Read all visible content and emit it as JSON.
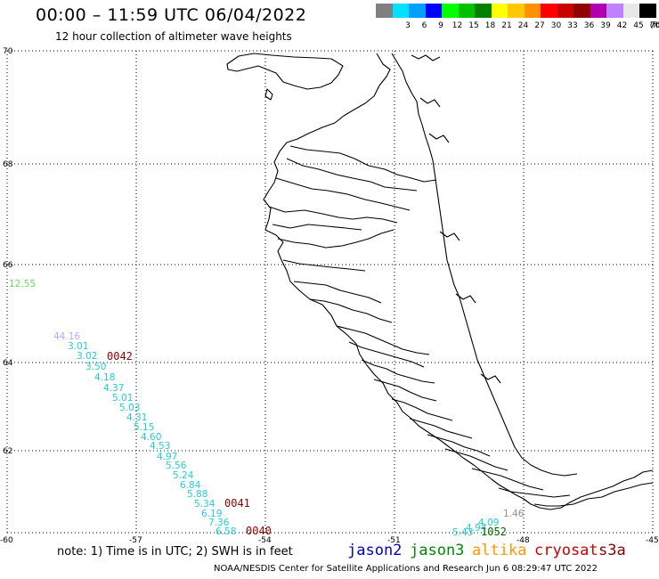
{
  "header": {
    "title": "00:00 – 11:59 UTC 06/04/2022",
    "subtitle": "12 hour collection of altimeter wave heights"
  },
  "legend": {
    "unit": "(ft)",
    "levels": [
      {
        "label": "",
        "color": "#808080"
      },
      {
        "label": "3",
        "color": "#00e0ff"
      },
      {
        "label": "6",
        "color": "#00a0ff"
      },
      {
        "label": "9",
        "color": "#0000ff"
      },
      {
        "label": "12",
        "color": "#00ff00"
      },
      {
        "label": "15",
        "color": "#00c000"
      },
      {
        "label": "18",
        "color": "#008000"
      },
      {
        "label": "21",
        "color": "#ffff00"
      },
      {
        "label": "24",
        "color": "#ffc800"
      },
      {
        "label": "27",
        "color": "#ff9000"
      },
      {
        "label": "30",
        "color": "#ff0000"
      },
      {
        "label": "33",
        "color": "#c80000"
      },
      {
        "label": "36",
        "color": "#900000"
      },
      {
        "label": "39",
        "color": "#b000b0"
      },
      {
        "label": "42",
        "color": "#c080ff"
      },
      {
        "label": "45",
        "color": "#e8e8e8"
      },
      {
        "label": "70",
        "color": "#000000"
      }
    ]
  },
  "axes": {
    "lat_labels": [
      "70",
      "68",
      "66",
      "64",
      "62",
      "60"
    ],
    "lon_labels": [
      "-60",
      "-57",
      "-54",
      "-51",
      "-48",
      "-45"
    ]
  },
  "observations": [
    {
      "text": "12.55",
      "color": "#66dd66"
    },
    {
      "text": "44.16",
      "color": "#b8a8ff"
    },
    {
      "text": "3.01",
      "color": "#22ccdd"
    },
    {
      "text": "3.02",
      "color": "#22ccdd"
    },
    {
      "text": "3.50",
      "color": "#22ccdd"
    },
    {
      "text": "4.18",
      "color": "#22ccdd"
    },
    {
      "text": "4.37",
      "color": "#22ccdd"
    },
    {
      "text": "5.01",
      "color": "#22ccdd"
    },
    {
      "text": "5.03",
      "color": "#22ccdd"
    },
    {
      "text": "4.31",
      "color": "#22ccdd"
    },
    {
      "text": "5.15",
      "color": "#22ccdd"
    },
    {
      "text": "4.60",
      "color": "#22ccdd"
    },
    {
      "text": "4.53",
      "color": "#22ccdd"
    },
    {
      "text": "4.97",
      "color": "#22ccdd"
    },
    {
      "text": "5.56",
      "color": "#22ccdd"
    },
    {
      "text": "5.24",
      "color": "#22ccdd"
    },
    {
      "text": "6.84",
      "color": "#22ccdd"
    },
    {
      "text": "5.88",
      "color": "#22ccdd"
    },
    {
      "text": "5.34",
      "color": "#22ccdd"
    },
    {
      "text": "6.19",
      "color": "#22ccdd"
    },
    {
      "text": "7.36",
      "color": "#22ccdd"
    },
    {
      "text": "6.58",
      "color": "#22ccdd"
    },
    {
      "text": "1.46",
      "color": "#909090"
    },
    {
      "text": "5.43",
      "color": "#22ccdd"
    },
    {
      "text": "4.94",
      "color": "#22ccdd"
    },
    {
      "text": "4.09",
      "color": "#22ccdd"
    }
  ],
  "pass_times": [
    {
      "text": "0042",
      "color": "#900000"
    },
    {
      "text": "0041",
      "color": "#900000"
    },
    {
      "text": "0040",
      "color": "#900000"
    },
    {
      "text": "1052",
      "color": "#006600"
    }
  ],
  "footer": {
    "note": "note:  1) Time is in UTC; 2) SWH is in feet",
    "satellites": [
      {
        "name": "jason2",
        "color": "#0000cc"
      },
      {
        "name": "jason3",
        "color": "#008800"
      },
      {
        "name": "altika",
        "color": "#ff9900"
      },
      {
        "name": "cryosat",
        "color": "#cc0000"
      },
      {
        "name": "s3a",
        "color": "#880000"
      }
    ],
    "credit": "NOAA/NESDIS Center for Satellite Applications and Research   Jun  6 08:29:47 UTC 2022"
  }
}
